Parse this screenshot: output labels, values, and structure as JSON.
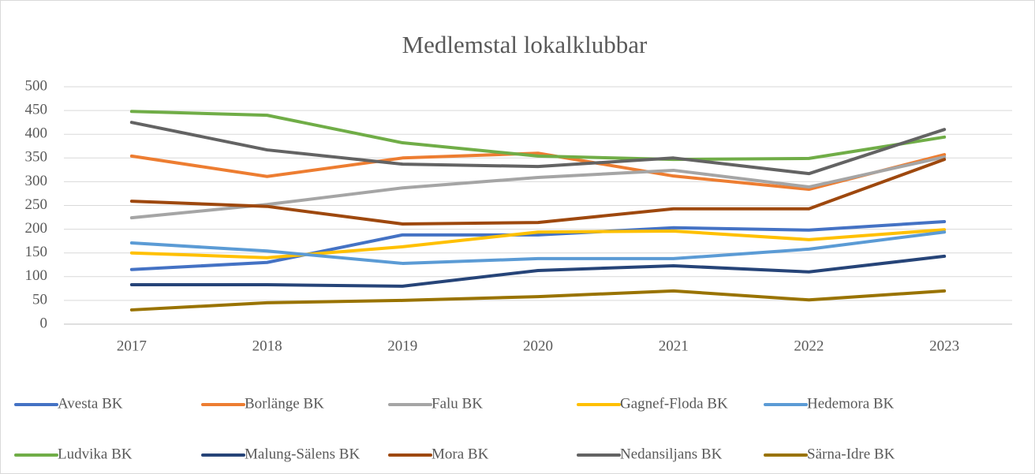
{
  "chart_data": {
    "type": "line",
    "title": "Medlemstal lokalklubbar",
    "categories": [
      "2017",
      "2018",
      "2019",
      "2020",
      "2021",
      "2022",
      "2023"
    ],
    "ylim": [
      0,
      500
    ],
    "yticks": [
      0,
      50,
      100,
      150,
      200,
      250,
      300,
      350,
      400,
      450,
      500
    ],
    "grid": true,
    "legend": "bottom",
    "series": [
      {
        "name": "Avesta BK",
        "color": "#4472c4",
        "values": [
          115,
          130,
          188,
          188,
          203,
          198,
          216
        ]
      },
      {
        "name": "Borlänge BK",
        "color": "#ed7d31",
        "values": [
          354,
          311,
          350,
          360,
          312,
          284,
          357
        ]
      },
      {
        "name": "Falu BK",
        "color": "#a5a5a5",
        "values": [
          224,
          252,
          287,
          309,
          324,
          289,
          352
        ]
      },
      {
        "name": "Gagnef-Floda BK",
        "color": "#ffc000",
        "values": [
          150,
          140,
          163,
          194,
          196,
          178,
          199
        ]
      },
      {
        "name": "Hedemora BK",
        "color": "#5b9bd5",
        "values": [
          171,
          154,
          128,
          138,
          138,
          158,
          194
        ]
      },
      {
        "name": "Ludvika BK",
        "color": "#70ad47",
        "values": [
          448,
          440,
          382,
          354,
          347,
          349,
          394
        ]
      },
      {
        "name": "Malung-Sälens BK",
        "color": "#264478",
        "values": [
          83,
          83,
          80,
          113,
          123,
          110,
          143
        ]
      },
      {
        "name": "Mora BK",
        "color": "#9e480e",
        "values": [
          259,
          248,
          211,
          214,
          243,
          243,
          347
        ]
      },
      {
        "name": "Nedansiljans BK",
        "color": "#636363",
        "values": [
          425,
          367,
          337,
          332,
          350,
          317,
          410
        ]
      },
      {
        "name": "Särna-Idre BK",
        "color": "#997300",
        "values": [
          30,
          45,
          50,
          58,
          70,
          51,
          70
        ]
      }
    ]
  }
}
